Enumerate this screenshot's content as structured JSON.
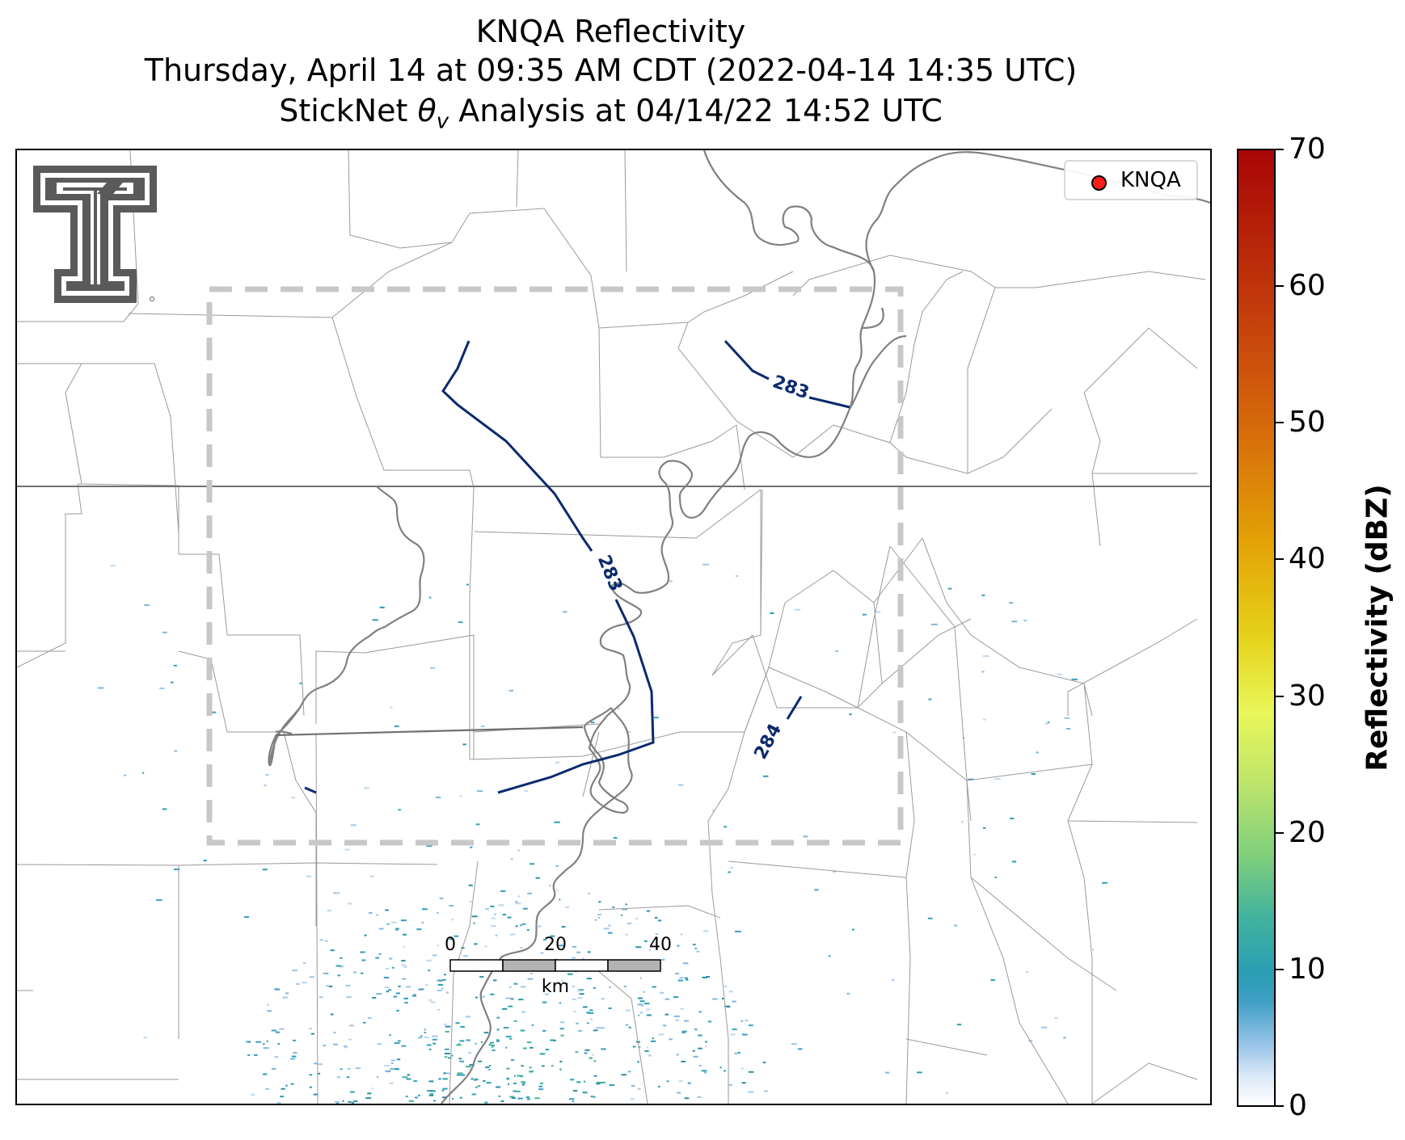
{
  "titles": {
    "line1": "KNQA Reflectivity",
    "line2": "Thursday, April 14 at 09:35 AM CDT (2022-04-14 14:35 UTC)",
    "line3_prefix": "StickNet ",
    "line3_symbol": "θ",
    "line3_subscript": "v",
    "line3_suffix": " Analysis at 04/14/22 14:52 UTC"
  },
  "legend": {
    "label": "KNQA",
    "marker_color": "#ff1a1a"
  },
  "colorbar": {
    "label": "Reflectivity (dBZ)",
    "min": 0,
    "max": 70,
    "ticks": [
      "0",
      "10",
      "20",
      "30",
      "40",
      "50",
      "60",
      "70"
    ],
    "colors": [
      "#ffffff",
      "#2a9fb3",
      "#7fcf7d",
      "#e8f75a",
      "#e6d21a",
      "#d66a0b",
      "#c43d0c",
      "#a80606"
    ]
  },
  "contours": [
    {
      "label": "283",
      "color": "#0a2a6e"
    },
    {
      "label": "283",
      "color": "#0a2a6e"
    },
    {
      "label": "284",
      "color": "#0a2a6e"
    }
  ],
  "scalebar": {
    "labels": [
      "0",
      "20",
      "40"
    ],
    "unit": "km"
  },
  "map": {
    "analysis_box_color": "#c8c8c8",
    "river_color": "#808080",
    "county_color": "#9a9a9a",
    "state_line_color": "#707070",
    "logo": "texas-tech-double-t-logo"
  }
}
